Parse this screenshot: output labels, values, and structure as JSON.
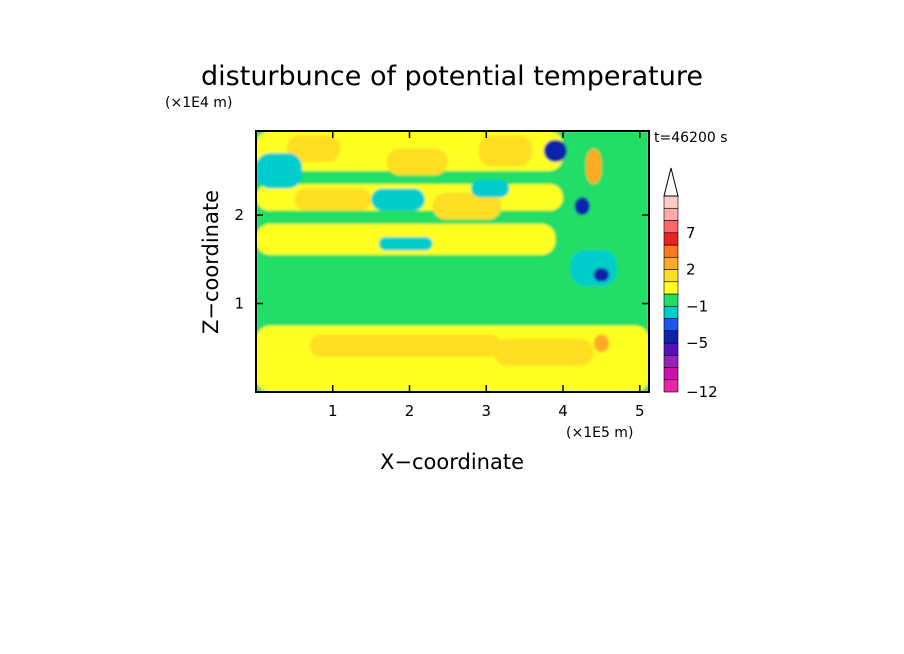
{
  "chart_data": {
    "type": "heatmap",
    "title": "disturbunce of potential temperature",
    "xlabel": "X−coordinate",
    "ylabel": "Z−coordinate",
    "x_unit": "(×1E5 m)",
    "y_unit": "(×1E4 m)",
    "time_label": "t=46200 s",
    "xlim": [
      0,
      5.12
    ],
    "ylim": [
      0,
      2.95
    ],
    "x_ticks": [
      1,
      2,
      3,
      4,
      5
    ],
    "x_tick_labels": [
      "1",
      "2",
      "3",
      "4",
      "5"
    ],
    "y_ticks": [
      1,
      2
    ],
    "y_tick_labels": [
      "1",
      "2"
    ],
    "colorbar": {
      "levels": [
        -12,
        -10,
        -8,
        -6,
        -5,
        -4,
        -2,
        -1,
        0,
        1,
        2,
        4,
        6,
        7,
        8,
        10
      ],
      "colors": [
        "#ee22aa",
        "#cc11aa",
        "#9922bb",
        "#5511bb",
        "#1122aa",
        "#2255ee",
        "#00cccc",
        "#22dd66",
        "#ffff22",
        "#ffdd22",
        "#ffaa22",
        "#ff7722",
        "#ee2222",
        "#ff6666",
        "#ffaaaa",
        "#ffcccc"
      ],
      "labeled_levels": [
        -12,
        -5,
        -1,
        2,
        7
      ],
      "tick_labels": [
        "−12",
        "−5",
        "−1",
        "2",
        "7"
      ],
      "extend": "max"
    },
    "regions": [
      {
        "label": "-0.5",
        "x0": 0.0,
        "x1": 5.12,
        "z0": 0.0,
        "z1": 2.95
      },
      {
        "label": "0.5",
        "x0": 0.0,
        "x1": 5.12,
        "z0": 0.0,
        "z1": 0.75
      },
      {
        "label": "-0.5",
        "x0": 0.0,
        "x1": 5.12,
        "z0": 1.45,
        "z1": 2.95
      },
      {
        "label": "0.5",
        "x0": 0.0,
        "x1": 3.9,
        "z0": 1.55,
        "z1": 1.9
      },
      {
        "label": "0.5",
        "x0": 0.0,
        "x1": 4.0,
        "z0": 2.05,
        "z1": 2.35
      },
      {
        "label": "0.5",
        "x0": 0.0,
        "x1": 4.0,
        "z0": 2.5,
        "z1": 2.95
      },
      {
        "label": "1.5",
        "x0": 0.4,
        "x1": 1.1,
        "z0": 2.6,
        "z1": 2.9
      },
      {
        "label": "1.5",
        "x0": 1.7,
        "x1": 2.5,
        "z0": 2.45,
        "z1": 2.75
      },
      {
        "label": "1.5",
        "x0": 2.9,
        "x1": 3.6,
        "z0": 2.55,
        "z1": 2.9
      },
      {
        "label": "1.5",
        "x0": 0.5,
        "x1": 1.5,
        "z0": 2.05,
        "z1": 2.3
      },
      {
        "label": "1.5",
        "x0": 2.3,
        "x1": 3.2,
        "z0": 1.95,
        "z1": 2.25
      },
      {
        "label": "1.5",
        "x0": 0.7,
        "x1": 3.2,
        "z0": 0.4,
        "z1": 0.65
      },
      {
        "label": "1.5",
        "x0": 3.1,
        "x1": 4.4,
        "z0": 0.3,
        "z1": 0.6
      },
      {
        "label": "-1.5",
        "x0": 0.0,
        "x1": 0.6,
        "z0": 2.3,
        "z1": 2.7
      },
      {
        "label": "-1.5",
        "x0": 1.5,
        "x1": 2.2,
        "z0": 2.05,
        "z1": 2.3
      },
      {
        "label": "-1.5",
        "x0": 2.8,
        "x1": 3.3,
        "z0": 2.2,
        "z1": 2.4
      },
      {
        "label": "-1.5",
        "x0": 1.6,
        "x1": 2.3,
        "z0": 1.6,
        "z1": 1.75
      },
      {
        "label": "-1.5",
        "x0": 4.1,
        "x1": 4.7,
        "z0": 1.2,
        "z1": 1.6
      },
      {
        "label": "-4.5",
        "x0": 3.75,
        "x1": 4.05,
        "z0": 2.6,
        "z1": 2.85
      },
      {
        "label": "-4.5",
        "x0": 4.4,
        "x1": 4.6,
        "z0": 1.25,
        "z1": 1.4
      },
      {
        "label": "-4.5",
        "x0": 4.15,
        "x1": 4.35,
        "z0": 2.0,
        "z1": 2.2
      },
      {
        "label": "2.5",
        "x0": 4.3,
        "x1": 4.5,
        "z0": 2.35,
        "z1": 2.75
      },
      {
        "label": "3",
        "x0": 4.4,
        "x1": 4.6,
        "z0": 0.45,
        "z1": 0.65
      }
    ]
  }
}
